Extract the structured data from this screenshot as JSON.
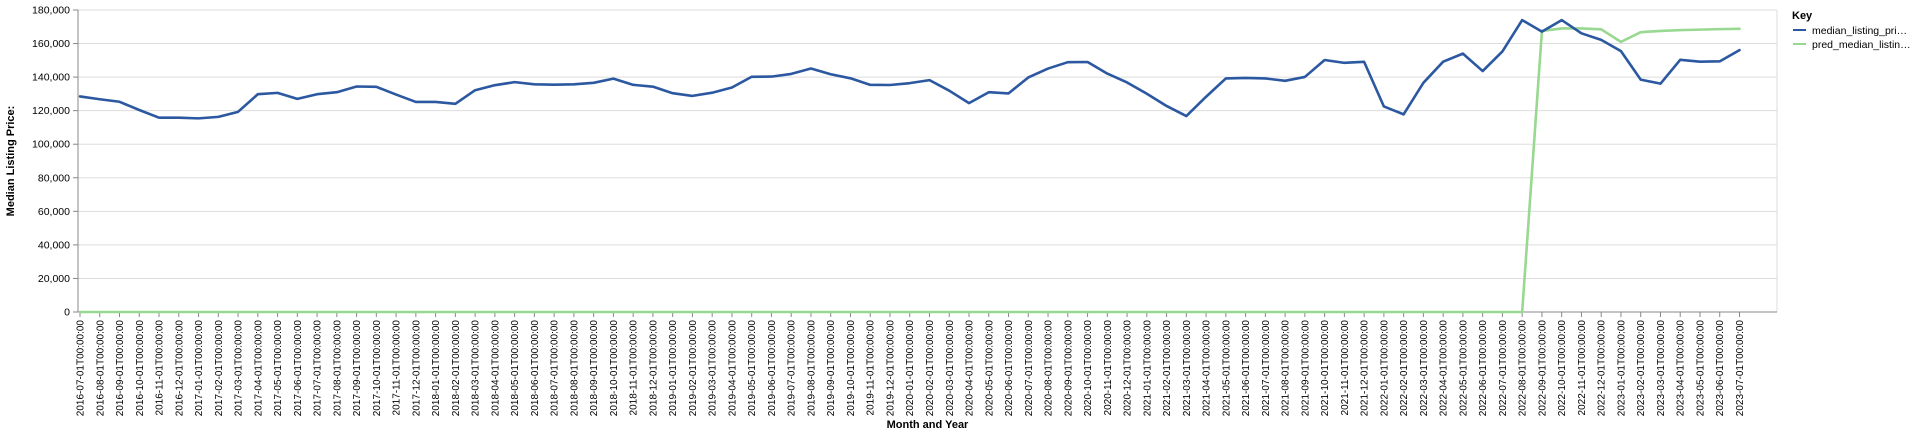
{
  "chart_data": {
    "type": "line",
    "title": "",
    "xlabel": "Month and Year",
    "ylabel": "Median Listing Price:",
    "ylim": [
      0,
      180000
    ],
    "yticks": [
      0,
      20000,
      40000,
      60000,
      80000,
      100000,
      120000,
      140000,
      160000,
      180000
    ],
    "ytick_labels": [
      "0",
      "20,000",
      "40,000",
      "60,000",
      "80,000",
      "100,000",
      "120,000",
      "140,000",
      "160,000",
      "180,000"
    ],
    "grid": true,
    "legend": {
      "title": "Key",
      "placement": "right",
      "entries": [
        "median_listing_pri…",
        "pred_median_listin…"
      ]
    },
    "x": [
      "2016-07-01T00:00:00",
      "2016-08-01T00:00:00",
      "2016-09-01T00:00:00",
      "2016-10-01T00:00:00",
      "2016-11-01T00:00:00",
      "2016-12-01T00:00:00",
      "2017-01-01T00:00:00",
      "2017-02-01T00:00:00",
      "2017-03-01T00:00:00",
      "2017-04-01T00:00:00",
      "2017-05-01T00:00:00",
      "2017-06-01T00:00:00",
      "2017-07-01T00:00:00",
      "2017-08-01T00:00:00",
      "2017-09-01T00:00:00",
      "2017-10-01T00:00:00",
      "2017-11-01T00:00:00",
      "2017-12-01T00:00:00",
      "2018-01-01T00:00:00",
      "2018-02-01T00:00:00",
      "2018-03-01T00:00:00",
      "2018-04-01T00:00:00",
      "2018-05-01T00:00:00",
      "2018-06-01T00:00:00",
      "2018-07-01T00:00:00",
      "2018-08-01T00:00:00",
      "2018-09-01T00:00:00",
      "2018-10-01T00:00:00",
      "2018-11-01T00:00:00",
      "2018-12-01T00:00:00",
      "2019-01-01T00:00:00",
      "2019-02-01T00:00:00",
      "2019-03-01T00:00:00",
      "2019-04-01T00:00:00",
      "2019-05-01T00:00:00",
      "2019-06-01T00:00:00",
      "2019-07-01T00:00:00",
      "2019-08-01T00:00:00",
      "2019-09-01T00:00:00",
      "2019-10-01T00:00:00",
      "2019-11-01T00:00:00",
      "2019-12-01T00:00:00",
      "2020-01-01T00:00:00",
      "2020-02-01T00:00:00",
      "2020-03-01T00:00:00",
      "2020-04-01T00:00:00",
      "2020-05-01T00:00:00",
      "2020-06-01T00:00:00",
      "2020-07-01T00:00:00",
      "2020-08-01T00:00:00",
      "2020-09-01T00:00:00",
      "2020-10-01T00:00:00",
      "2020-11-01T00:00:00",
      "2020-12-01T00:00:00",
      "2021-01-01T00:00:00",
      "2021-02-01T00:00:00",
      "2021-03-01T00:00:00",
      "2021-04-01T00:00:00",
      "2021-05-01T00:00:00",
      "2021-06-01T00:00:00",
      "2021-07-01T00:00:00",
      "2021-08-01T00:00:00",
      "2021-09-01T00:00:00",
      "2021-10-01T00:00:00",
      "2021-11-01T00:00:00",
      "2021-12-01T00:00:00",
      "2022-01-01T00:00:00",
      "2022-02-01T00:00:00",
      "2022-03-01T00:00:00",
      "2022-04-01T00:00:00",
      "2022-05-01T00:00:00",
      "2022-06-01T00:00:00",
      "2022-07-01T00:00:00",
      "2022-08-01T00:00:00",
      "2022-09-01T00:00:00",
      "2022-10-01T00:00:00",
      "2022-11-01T00:00:00",
      "2022-12-01T00:00:00",
      "2023-01-01T00:00:00",
      "2023-02-01T00:00:00",
      "2023-03-01T00:00:00",
      "2023-04-01T00:00:00",
      "2023-05-01T00:00:00",
      "2023-06-01T00:00:00",
      "2023-07-01T00:00:00"
    ],
    "series": [
      {
        "name": "median_listing_pri…",
        "color": "#2b58a0",
        "values": [
          128500,
          126800,
          125300,
          120400,
          115800,
          115800,
          115400,
          116300,
          119300,
          129800,
          130600,
          127000,
          129800,
          131000,
          134400,
          134200,
          129600,
          125200,
          125200,
          124100,
          132200,
          135200,
          137000,
          135700,
          135500,
          135700,
          136600,
          139100,
          135400,
          134300,
          130400,
          128800,
          130700,
          133800,
          140200,
          140300,
          141900,
          145100,
          141700,
          139300,
          135400,
          135300,
          136400,
          138200,
          131900,
          124500,
          131000,
          130300,
          139800,
          145100,
          148900,
          149000,
          142100,
          136800,
          130100,
          122800,
          116800,
          128300,
          139200,
          139500,
          139200,
          137800,
          140100,
          150200,
          148500,
          149100,
          122500,
          117800,
          136600,
          149200,
          154000,
          143600,
          155300,
          174000,
          167100,
          174000,
          166100,
          162200,
          155500,
          138500,
          136100,
          150300,
          149200,
          149400,
          156100
        ]
      },
      {
        "name": "pred_median_listin…",
        "color": "#98d890",
        "values": [
          0,
          0,
          0,
          0,
          0,
          0,
          0,
          0,
          0,
          0,
          0,
          0,
          0,
          0,
          0,
          0,
          0,
          0,
          0,
          0,
          0,
          0,
          0,
          0,
          0,
          0,
          0,
          0,
          0,
          0,
          0,
          0,
          0,
          0,
          0,
          0,
          0,
          0,
          0,
          0,
          0,
          0,
          0,
          0,
          0,
          0,
          0,
          0,
          0,
          0,
          0,
          0,
          0,
          0,
          0,
          0,
          0,
          0,
          0,
          0,
          0,
          0,
          0,
          0,
          0,
          0,
          0,
          0,
          0,
          0,
          0,
          0,
          0,
          0,
          167500,
          169000,
          169000,
          168500,
          161000,
          166800,
          167500,
          168000,
          168300,
          168600,
          168800
        ]
      }
    ]
  }
}
